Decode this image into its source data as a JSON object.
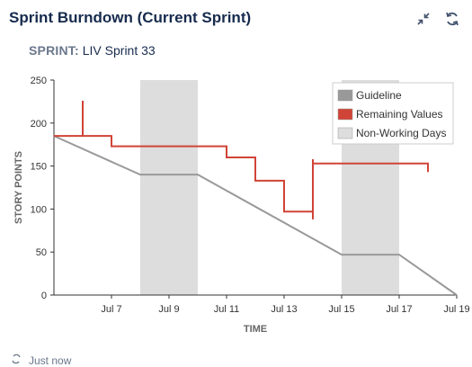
{
  "header": {
    "title": "Sprint Burndown (Current Sprint)",
    "collapse_icon": "collapse-arrows-icon",
    "refresh_icon": "refresh-icon"
  },
  "sprint": {
    "label": "SPRINT:",
    "value": "LIV Sprint 33"
  },
  "footer": {
    "text": "Just now",
    "icon": "refresh-icon"
  },
  "colors": {
    "guideline": "#999999",
    "remaining": "#d04437",
    "non_working": "#dddddd",
    "axis": "#333333",
    "grid": "#cccccc"
  },
  "chart_data": {
    "type": "line",
    "xlabel": "TIME",
    "ylabel": "STORY POINTS",
    "x_range": [
      "2025-07-05",
      "2025-07-19"
    ],
    "x_ticks": [
      "Jul 7",
      "Jul 9",
      "Jul 11",
      "Jul 13",
      "Jul 15",
      "Jul 17",
      "Jul 19"
    ],
    "ylim": [
      0,
      250
    ],
    "y_ticks": [
      0,
      50,
      100,
      150,
      200,
      250
    ],
    "grid": false,
    "legend_position": "top-right",
    "legend": [
      "Guideline",
      "Remaining Values",
      "Non-Working Days"
    ],
    "non_working_days": [
      [
        "2025-07-08",
        "2025-07-10"
      ],
      [
        "2025-07-15",
        "2025-07-17"
      ]
    ],
    "series": [
      {
        "name": "Guideline",
        "step": false,
        "points": [
          [
            "2025-07-05",
            185
          ],
          [
            "2025-07-08",
            140
          ],
          [
            "2025-07-10",
            140
          ],
          [
            "2025-07-15",
            47
          ],
          [
            "2025-07-17",
            47
          ],
          [
            "2025-07-19",
            0
          ]
        ]
      },
      {
        "name": "Remaining Values",
        "step": true,
        "points": [
          [
            "2025-07-05",
            185
          ],
          [
            "2025-07-06",
            185
          ],
          [
            "2025-07-06",
            226
          ],
          [
            "2025-07-06",
            185
          ],
          [
            "2025-07-07",
            185
          ],
          [
            "2025-07-07",
            180
          ],
          [
            "2025-07-07",
            173
          ],
          [
            "2025-07-11",
            173
          ],
          [
            "2025-07-11",
            166
          ],
          [
            "2025-07-11",
            160
          ],
          [
            "2025-07-12",
            160
          ],
          [
            "2025-07-12",
            155
          ],
          [
            "2025-07-12",
            148
          ],
          [
            "2025-07-12",
            133
          ],
          [
            "2025-07-13",
            133
          ],
          [
            "2025-07-13",
            112
          ],
          [
            "2025-07-13",
            103
          ],
          [
            "2025-07-13",
            97
          ],
          [
            "2025-07-14",
            97
          ],
          [
            "2025-07-14",
            88
          ],
          [
            "2025-07-14",
            88
          ],
          [
            "2025-07-14",
            158
          ],
          [
            "2025-07-14",
            153
          ],
          [
            "2025-07-18",
            153
          ],
          [
            "2025-07-18",
            143
          ],
          [
            "2025-07-18",
            146
          ]
        ]
      }
    ]
  }
}
